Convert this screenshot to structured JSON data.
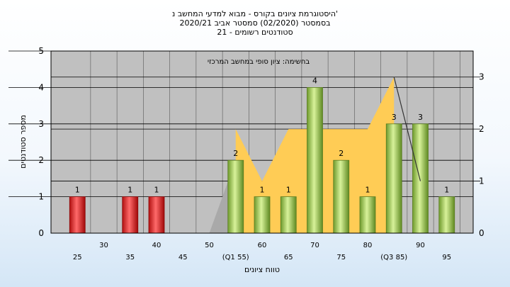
{
  "title_lines": [
    "היסטוגרמת ציונים בקורס - מבוא למדעי המחשב נ'",
    "בסמסטר  (02/2020)  סמסטר אביב 2020/21",
    "סטודנטים רשומים - 21"
  ],
  "colors": {
    "plot_background": "#c0c0c0",
    "area_fill": "#ffcc55",
    "gray_wedge": "#a9a9a9",
    "bar_red": "#e02020",
    "bar_green": "#9ccc50",
    "line": "#333333"
  },
  "chart_data": {
    "type": "bar",
    "title": "בחשימה: ציון סופי במחשב המרכזי",
    "xlabel": "טווח ציונים",
    "ylabel": "מספר סטודנטים",
    "ylim": [
      0,
      5
    ],
    "y_ticks": [
      "0",
      "1",
      "2",
      "3",
      "4",
      "5"
    ],
    "y2lim": [
      0,
      3.5
    ],
    "y2_ticks": [
      "0",
      "1",
      "2",
      "3"
    ],
    "grid": true,
    "x_ticks": [
      {
        "x": 25,
        "label": "25"
      },
      {
        "x": 30,
        "label": "30"
      },
      {
        "x": 35,
        "label": "35"
      },
      {
        "x": 40,
        "label": "40"
      },
      {
        "x": 45,
        "label": "45"
      },
      {
        "x": 50,
        "label": "50"
      },
      {
        "x": 55,
        "label": "(Q1 55)"
      },
      {
        "x": 60,
        "label": "60"
      },
      {
        "x": 65,
        "label": "65"
      },
      {
        "x": 70,
        "label": "70"
      },
      {
        "x": 75,
        "label": "75"
      },
      {
        "x": 80,
        "label": "80"
      },
      {
        "x": 85,
        "label": "(Q3 85)"
      },
      {
        "x": 90,
        "label": "90"
      },
      {
        "x": 95,
        "label": "95"
      }
    ],
    "bars": [
      {
        "x": 25,
        "value": 1,
        "label": "1",
        "color": "red"
      },
      {
        "x": 35,
        "value": 1,
        "label": "1",
        "color": "red"
      },
      {
        "x": 40,
        "value": 1,
        "label": "1",
        "color": "red"
      },
      {
        "x": 55,
        "value": 2,
        "label": "2",
        "color": "green"
      },
      {
        "x": 60,
        "value": 1,
        "label": "1",
        "color": "green"
      },
      {
        "x": 65,
        "value": 1,
        "label": "1",
        "color": "green"
      },
      {
        "x": 70,
        "value": 4,
        "label": "4",
        "color": "green"
      },
      {
        "x": 75,
        "value": 2,
        "label": "2",
        "color": "green"
      },
      {
        "x": 80,
        "value": 1,
        "label": "1",
        "color": "green"
      },
      {
        "x": 85,
        "value": 3,
        "label": "3",
        "color": "green"
      },
      {
        "x": 90,
        "value": 3,
        "label": "3",
        "color": "green"
      },
      {
        "x": 95,
        "value": 1,
        "label": "1",
        "color": "green"
      }
    ],
    "gray_wedge": [
      [
        50,
        0
      ],
      [
        55,
        2
      ],
      [
        55,
        0
      ]
    ],
    "yellow_area": [
      [
        55,
        2
      ],
      [
        60,
        1
      ],
      [
        65,
        2
      ],
      [
        80,
        2
      ],
      [
        85,
        3
      ],
      [
        85,
        0
      ],
      [
        55,
        0
      ]
    ],
    "dark_line": [
      [
        85,
        3
      ],
      [
        90,
        1
      ]
    ]
  }
}
